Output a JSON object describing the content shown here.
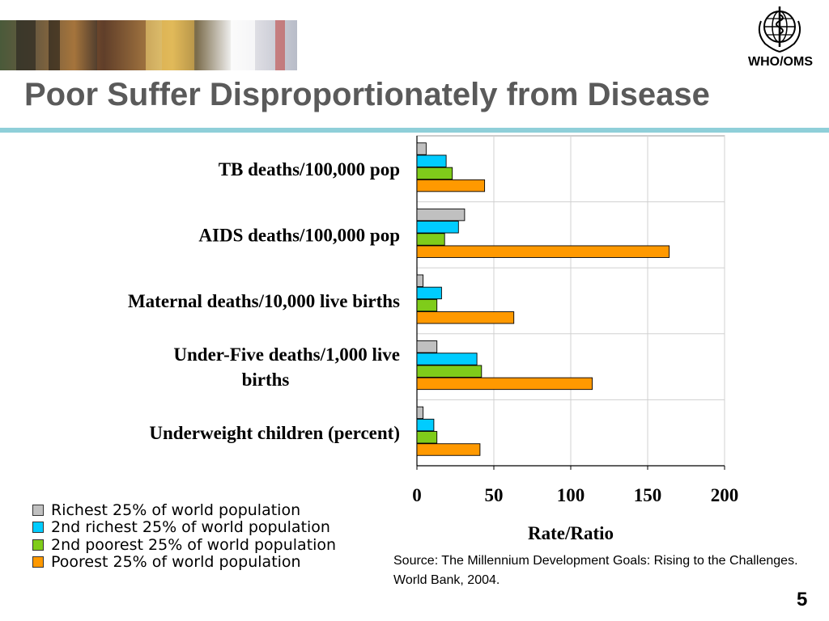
{
  "header": {
    "title": "Poor Suffer Disproportionately from Disease",
    "logo_text": "WHO/OMS",
    "logo_icon": "who-emblem-icon"
  },
  "chart_data": {
    "type": "bar",
    "orientation": "horizontal",
    "categories": [
      [
        "TB deaths/100,000 pop"
      ],
      [
        "AIDS deaths/100,000 pop"
      ],
      [
        "Maternal deaths/10,000 live births"
      ],
      [
        "Under-Five deaths/1,000 live",
        "births"
      ],
      [
        "Underweight children (percent)"
      ]
    ],
    "series": [
      {
        "name": "Richest 25% of world population",
        "color": "#c0c0c0",
        "values": [
          6,
          31,
          4,
          13,
          4
        ]
      },
      {
        "name": "2nd richest 25% of world population",
        "color": "#00ccff",
        "values": [
          19,
          27,
          16,
          39,
          11
        ]
      },
      {
        "name": "2nd poorest 25% of world population",
        "color": "#7fcc1a",
        "values": [
          23,
          18,
          13,
          42,
          13
        ]
      },
      {
        "name": "Poorest 25% of world population",
        "color": "#ff9900",
        "values": [
          44,
          164,
          63,
          114,
          41
        ]
      }
    ],
    "xlim": [
      0,
      200
    ],
    "xticks": [
      "0",
      "50",
      "100",
      "150",
      "200"
    ],
    "xlabel": "Rate/Ratio",
    "grid": true,
    "legend_position": "bottom-left"
  },
  "footer": {
    "source": "Source: The Millennium Development Goals: Rising to the Challenges. World Bank, 2004.",
    "page_number": "5"
  }
}
